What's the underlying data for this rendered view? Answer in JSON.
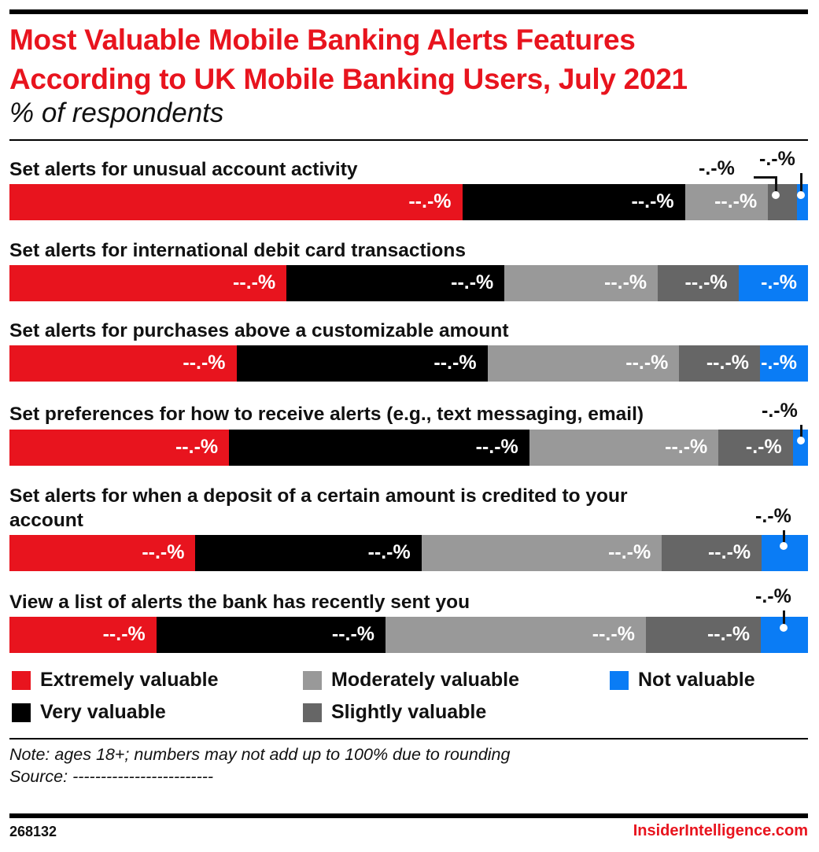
{
  "chart_data": {
    "type": "bar",
    "orientation": "horizontal-stacked-100",
    "title": "Most Valuable Mobile Banking Alerts Features According to UK Mobile Banking Users, July 2021",
    "title_lines": [
      "Most Valuable Mobile Banking Alerts Features",
      "According to UK Mobile Banking Users, July 2021"
    ],
    "subtitle": "% of respondents",
    "categories": [
      "Set alerts for unusual account activity",
      "Set alerts for international debit card transactions",
      "Set alerts for purchases above a customizable amount",
      "Set preferences for how to receive alerts (e.g., text messaging, email)",
      "Set alerts for when a deposit of a certain amount is credited to your account",
      "View a list of alerts the bank has recently sent you"
    ],
    "series": [
      {
        "name": "Extremely valuable",
        "color": "#e8141e",
        "values": [
          56.7,
          34.7,
          28.4,
          27.5,
          23.3,
          18.4
        ],
        "labels": [
          "--.-%",
          "--.-%",
          "--.-%",
          "--.-%",
          "--.-%",
          "--.-%"
        ]
      },
      {
        "name": "Very valuable",
        "color": "#000000",
        "values": [
          27.9,
          27.3,
          31.4,
          37.6,
          28.3,
          28.7
        ],
        "labels": [
          "--.-%",
          "--.-%",
          "--.-%",
          "--.-%",
          "--.-%",
          "--.-%"
        ]
      },
      {
        "name": "Moderately valuable",
        "color": "#999999",
        "values": [
          10.4,
          19.2,
          24.0,
          23.7,
          30.1,
          32.6
        ],
        "labels": [
          "--.-%",
          "--.-%",
          "--.-%",
          "--.-%",
          "--.-%",
          "--.-%"
        ]
      },
      {
        "name": "Slightly valuable",
        "color": "#666666",
        "values": [
          3.6,
          10.1,
          10.1,
          9.3,
          12.5,
          14.4
        ],
        "labels": [
          "-.-%",
          "--.-%",
          "--.-%",
          "-.-%",
          "--.-%",
          "--.-%"
        ]
      },
      {
        "name": "Not valuable",
        "color": "#0a7cf5",
        "values": [
          1.4,
          8.7,
          6.0,
          1.9,
          5.8,
          5.9
        ],
        "labels": [
          "-.-%",
          "-.-%",
          "-.-%",
          "-.-%",
          "-.-%",
          "-.-%"
        ]
      }
    ],
    "xlim": [
      0,
      100
    ],
    "legend_position": "bottom"
  },
  "note": "Note: ages 18+; numbers may not add up to 100% due to rounding",
  "source": "Source: -------------------------",
  "chart_id": "268132",
  "brand": "InsiderIntelligence.com"
}
